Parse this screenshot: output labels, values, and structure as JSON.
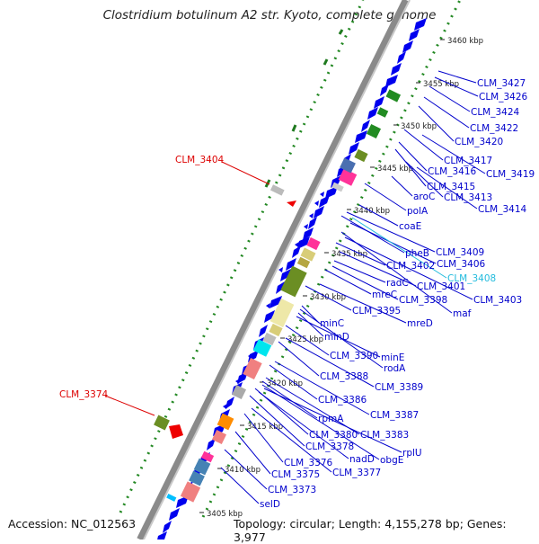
{
  "title": "Clostridium botulinum A2 str. Kyoto, complete genome",
  "footer": {
    "accession": "Accession: NC_012563",
    "topology": "Topology: circular; Length: 4,155,278 bp; Genes: 3,977"
  },
  "colors": {
    "forward_gene": "#0000ee",
    "label_blue": "#0000cc",
    "label_red": "#dd0000",
    "label_cyan": "#22bbdd",
    "backbone": "#888888",
    "gc_dots": "#228822"
  },
  "kbp_ticks": [
    "3405 kbp",
    "3410 kbp",
    "3415 kbp",
    "3420 kbp",
    "3425 kbp",
    "3430 kbp",
    "3435 kbp",
    "3440 kbp",
    "3445 kbp",
    "3450 kbp",
    "3455 kbp",
    "3460 kbp"
  ],
  "labels": {
    "CLM_3427": "CLM_3427",
    "CLM_3426": "CLM_3426",
    "CLM_3424": "CLM_3424",
    "CLM_3422": "CLM_3422",
    "CLM_3420": "CLM_3420",
    "CLM_3417": "CLM_3417",
    "CLM_3419": "CLM_3419",
    "CLM_3416": "CLM_3416",
    "CLM_3415": "CLM_3415",
    "aroC": "aroC",
    "CLM_3413": "CLM_3413",
    "polA": "polA",
    "CLM_3414": "CLM_3414",
    "coaE": "coaE",
    "pheB": "pheB",
    "CLM_3409": "CLM_3409",
    "CLM_3402": "CLM_3402",
    "CLM_3406": "CLM_3406",
    "CLM_3408": "CLM_3408",
    "radC": "radC",
    "CLM_3401": "CLM_3401",
    "mreC": "mreC",
    "CLM_3398": "CLM_3398",
    "CLM_3403": "CLM_3403",
    "CLM_3395": "CLM_3395",
    "maf": "maf",
    "mreD": "mreD",
    "minC": "minC",
    "minD": "minD",
    "CLM_3390": "CLM_3390",
    "minE": "minE",
    "rodA": "rodA",
    "CLM_3388": "CLM_3388",
    "CLM_3389": "CLM_3389",
    "CLM_3386": "CLM_3386",
    "CLM_3387": "CLM_3387",
    "rpmA": "rpmA",
    "CLM_3380": "CLM_3380",
    "CLM_3383": "CLM_3383",
    "CLM_3378": "CLM_3378",
    "rplU": "rplU",
    "nadD": "nadD",
    "obgE": "obgE",
    "CLM_3376": "CLM_3376",
    "CLM_3377": "CLM_3377",
    "CLM_3375": "CLM_3375",
    "CLM_3373": "CLM_3373",
    "selD": "selD",
    "CLM_3404": "CLM_3404",
    "CLM_3374": "CLM_3374"
  }
}
